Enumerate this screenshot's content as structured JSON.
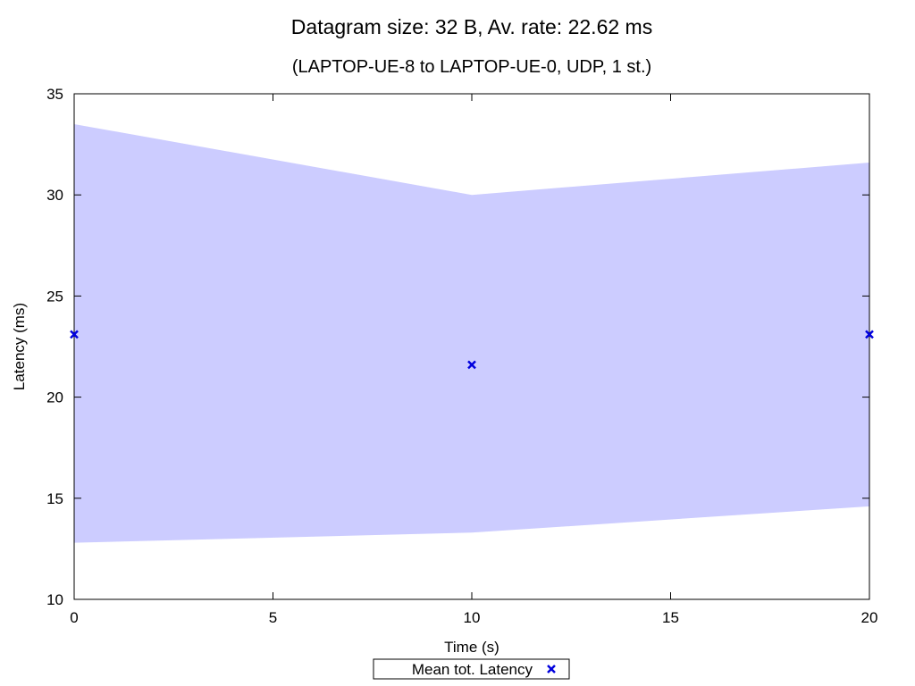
{
  "chart_data": {
    "type": "area",
    "title": "Datagram size: 32 B, Av. rate: 22.62 ms",
    "subtitle": "(LAPTOP-UE-8 to LAPTOP-UE-0, UDP, 1 st.)",
    "xlabel": "Time (s)",
    "ylabel": "Latency (ms)",
    "xlim": [
      0,
      20
    ],
    "ylim": [
      10,
      35
    ],
    "xticks": [
      0,
      5,
      10,
      15,
      20
    ],
    "yticks": [
      10,
      15,
      20,
      25,
      30,
      35
    ],
    "grid": false,
    "legend_position": "bottom-center",
    "band": {
      "x": [
        0,
        10,
        20
      ],
      "lower": [
        12.8,
        13.3,
        14.6
      ],
      "upper": [
        33.5,
        30.0,
        31.6
      ],
      "color": "#ccccff"
    },
    "series": [
      {
        "name": "Mean tot. Latency",
        "marker": "x",
        "color": "#0000dd",
        "x": [
          0,
          10,
          20
        ],
        "y": [
          23.1,
          21.6,
          23.1
        ]
      }
    ]
  }
}
